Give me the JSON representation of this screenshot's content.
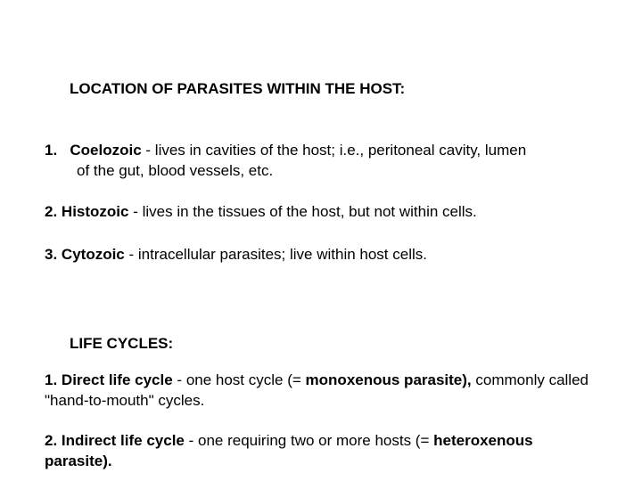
{
  "heading1": "LOCATION OF PARASITES WITHIN THE HOST:",
  "item1": {
    "num": "1.",
    "term": "Coelozoic",
    "sep": "‑",
    "desc_a": "lives in cavities of the host; i.e., peritoneal cavity, lumen",
    "desc_b": "of the gut, blood vessels, etc."
  },
  "item2": {
    "num": "2.",
    "term": "Histozoic",
    "sep": "‑",
    "desc": "lives in the tissues of the host, but not within cells."
  },
  "item3": {
    "num": "3.",
    "term": "Cytozoic",
    "sep": "‑",
    "desc": "intracellular parasites; live within host cells."
  },
  "heading2": "LIFE CYCLES:",
  "item4": {
    "num": "1.",
    "term": "Direct life cycle",
    "sep": "‑",
    "desc_a": "one host cycle (=",
    "bold_a": "monoxenous parasite),",
    "desc_b": "commonly called \"hand‑to‑mouth\" cycles."
  },
  "item5": {
    "num": "2.",
    "term": "Indirect life cycle",
    "sep": "‑",
    "desc_a": "one requiring two or more hosts (=",
    "bold_a": "heteroxenous parasite)."
  },
  "colors": {
    "background": "#ffffff",
    "text": "#000000"
  },
  "typography": {
    "font_family": "Arial",
    "body_fontsize_pt": 13,
    "heading_weight": "bold"
  }
}
